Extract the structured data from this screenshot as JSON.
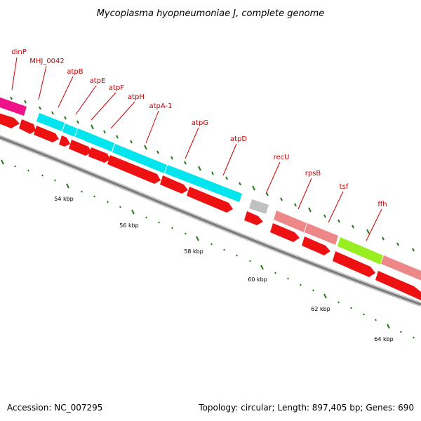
{
  "title": "Mycoplasma hyopneumoniae J, complete genome",
  "accession": "Accession: NC_007295",
  "summary": "Topology: circular; Length: 897,405 bp; Genes: 690",
  "colors": {
    "label": "#cc0000",
    "cds": "#ee1111",
    "backbone": "#909090",
    "tick": "#2a7a1c"
  },
  "gene_labels": [
    "dinP",
    "MHJ_0042",
    "atpB",
    "atpE",
    "atpF",
    "atpH",
    "atpA-1",
    "atpG",
    "atpD",
    "recU",
    "rpsB",
    "tsf",
    "ffh"
  ],
  "scale_labels": [
    "54 kbp",
    "56 kbp",
    "58 kbp",
    "60 kbp",
    "62 kbp",
    "64 kbp"
  ],
  "category_colors": [
    "#ee1188",
    "#00e5ee",
    "#c0c0c0",
    "#ee8888",
    "#99ee22"
  ]
}
